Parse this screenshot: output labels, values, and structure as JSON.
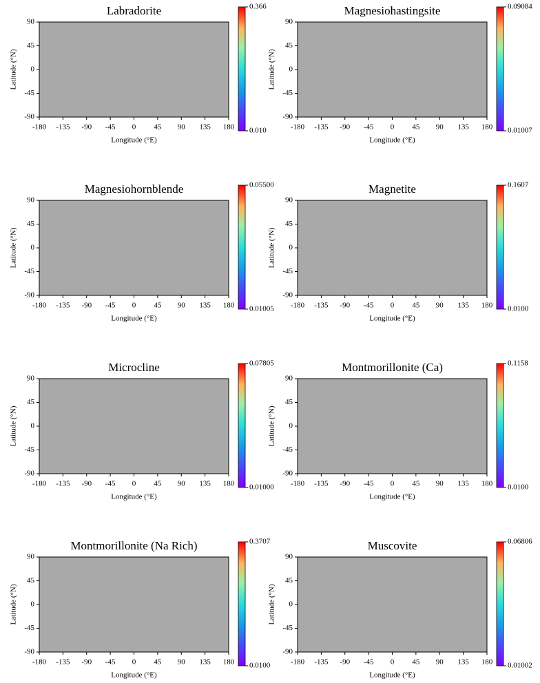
{
  "chart_data": [
    {
      "type": "map",
      "title": "Labradorite",
      "xlabel": "Longitude (°E)",
      "ylabel": "Latitude (°N)",
      "xlim": [
        -180,
        180
      ],
      "ylim": [
        -90,
        90
      ],
      "xticks": [
        -180,
        -135,
        -90,
        -45,
        0,
        45,
        90,
        135,
        180
      ],
      "yticks": [
        -90,
        -45,
        0,
        45,
        90
      ],
      "colormap": "rainbow",
      "clim": [
        0.01,
        0.366
      ],
      "cticks": [
        {
          "value": 0.01,
          "label": "0.010"
        },
        0.366
      ]
    },
    {
      "type": "map",
      "title": "Magnesiohastingsite",
      "xlabel": "Longitude (°E)",
      "ylabel": "Latitude (°N)",
      "xlim": [
        -180,
        180
      ],
      "ylim": [
        -90,
        90
      ],
      "xticks": [
        -180,
        -135,
        -90,
        -45,
        0,
        45,
        90,
        135,
        180
      ],
      "yticks": [
        -90,
        -45,
        0,
        45,
        90
      ],
      "colormap": "rainbow",
      "clim": [
        0.01007,
        0.09084
      ],
      "cticks": [
        0.01007,
        0.09084
      ]
    },
    {
      "type": "map",
      "title": "Magnesiohornblende",
      "xlabel": "Longitude (°E)",
      "ylabel": "Latitude (°N)",
      "xlim": [
        -180,
        180
      ],
      "ylim": [
        -90,
        90
      ],
      "xticks": [
        -180,
        -135,
        -90,
        -45,
        0,
        45,
        90,
        135,
        180
      ],
      "yticks": [
        -90,
        -45,
        0,
        45,
        90
      ],
      "colormap": "rainbow",
      "clim": [
        0.01005,
        0.055
      ],
      "cticks": [
        0.01005,
        {
          "value": 0.055,
          "label": "0.05500"
        }
      ]
    },
    {
      "type": "map",
      "title": "Magnetite",
      "xlabel": "Longitude (°E)",
      "ylabel": "Latitude (°N)",
      "xlim": [
        -180,
        180
      ],
      "ylim": [
        -90,
        90
      ],
      "xticks": [
        -180,
        -135,
        -90,
        -45,
        0,
        45,
        90,
        135,
        180
      ],
      "yticks": [
        -90,
        -45,
        0,
        45,
        90
      ],
      "colormap": "rainbow",
      "clim": [
        0.01,
        0.1607
      ],
      "cticks": [
        {
          "value": 0.01,
          "label": "0.0100"
        },
        0.1607
      ]
    },
    {
      "type": "map",
      "title": "Microcline",
      "xlabel": "Longitude (°E)",
      "ylabel": "Latitude (°N)",
      "xlim": [
        -180,
        180
      ],
      "ylim": [
        -90,
        90
      ],
      "xticks": [
        -180,
        -135,
        -90,
        -45,
        0,
        45,
        90,
        135,
        180
      ],
      "yticks": [
        -90,
        -45,
        0,
        45,
        90
      ],
      "colormap": "rainbow",
      "clim": [
        0.01,
        0.07805
      ],
      "cticks": [
        {
          "value": 0.01,
          "label": "0.01000"
        },
        0.07805
      ]
    },
    {
      "type": "map",
      "title": "Montmorillonite (Ca)",
      "xlabel": "Longitude (°E)",
      "ylabel": "Latitude (°N)",
      "xlim": [
        -180,
        180
      ],
      "ylim": [
        -90,
        90
      ],
      "xticks": [
        -180,
        -135,
        -90,
        -45,
        0,
        45,
        90,
        135,
        180
      ],
      "yticks": [
        -90,
        -45,
        0,
        45,
        90
      ],
      "colormap": "rainbow",
      "clim": [
        0.01,
        0.1158
      ],
      "cticks": [
        {
          "value": 0.01,
          "label": "0.0100"
        },
        0.1158
      ]
    },
    {
      "type": "map",
      "title": "Montmorillonite (Na Rich)",
      "xlabel": "Longitude (°E)",
      "ylabel": "Latitude (°N)",
      "xlim": [
        -180,
        180
      ],
      "ylim": [
        -90,
        90
      ],
      "xticks": [
        -180,
        -135,
        -90,
        -45,
        0,
        45,
        90,
        135,
        180
      ],
      "yticks": [
        -90,
        -45,
        0,
        45,
        90
      ],
      "colormap": "rainbow",
      "clim": [
        0.01,
        0.3707
      ],
      "cticks": [
        {
          "value": 0.01,
          "label": "0.0100"
        },
        0.3707
      ]
    },
    {
      "type": "map",
      "title": "Muscovite",
      "xlabel": "Longitude (°E)",
      "ylabel": "Latitude (°N)",
      "xlim": [
        -180,
        180
      ],
      "ylim": [
        -90,
        90
      ],
      "xticks": [
        -180,
        -135,
        -90,
        -45,
        0,
        45,
        90,
        135,
        180
      ],
      "yticks": [
        -90,
        -45,
        0,
        45,
        90
      ],
      "colormap": "rainbow",
      "clim": [
        0.01002,
        0.06806
      ],
      "cticks": [
        0.01002,
        0.06806
      ]
    }
  ]
}
